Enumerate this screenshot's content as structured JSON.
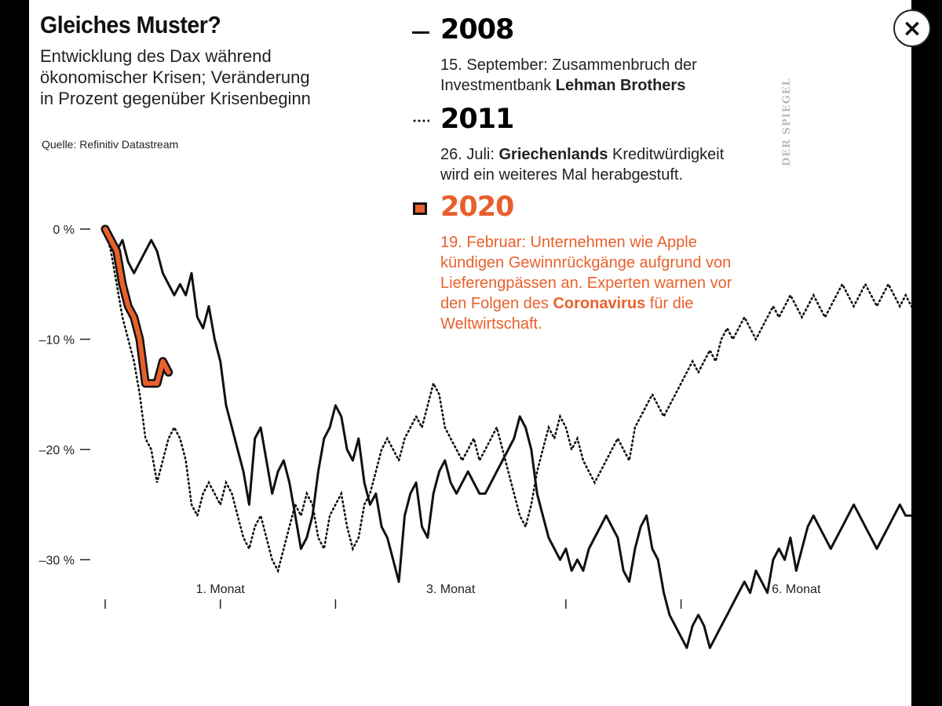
{
  "header": {
    "title": "Gleiches Muster?",
    "subtitle": "Entwicklung des Dax während ökonomischer Krisen; Veränderung in Prozent gegenüber Krisenbeginn",
    "source": "Quelle: Refinitiv Datastream",
    "watermark": "DER SPIEGEL"
  },
  "legend": [
    {
      "year": "2008",
      "desc_parts": [
        {
          "text": "15. September: Zusammenbruch der Investmentbank ",
          "bold": false
        },
        {
          "text": "Lehman Brothers",
          "bold": true
        }
      ]
    },
    {
      "year": "2011",
      "desc_parts": [
        {
          "text": "26. Juli: ",
          "bold": false
        },
        {
          "text": "Griechenlands",
          "bold": true
        },
        {
          "text": " Kreditwürdigkeit wird ein weiteres Mal herabgestuft.",
          "bold": false
        }
      ]
    },
    {
      "year": "2020",
      "desc_parts": [
        {
          "text": "19. Februar: Unternehmen wie Apple kündigen Gewinnrückgänge aufgrund von Lieferengpässen an. Experten warnen vor den Folgen des ",
          "bold": false
        },
        {
          "text": "Coronavirus",
          "bold": true
        },
        {
          "text": " für die Weltwirtschaft.",
          "bold": false
        }
      ]
    }
  ],
  "close_button": {
    "label": "×"
  },
  "colors": {
    "series_2008": "#111111",
    "series_2011": "#111111",
    "series_2020": "#e8602c",
    "outline_2020": "#111111"
  },
  "chart_data": {
    "type": "line",
    "title": "Gleiches Muster?",
    "ylabel": "",
    "xlabel": "",
    "ylim": [
      -40,
      3
    ],
    "xlim": [
      0,
      140
    ],
    "y_ticks": [
      {
        "value": 0,
        "label": "0 %"
      },
      {
        "value": -10,
        "label": "–10 %"
      },
      {
        "value": -20,
        "label": "–20 %"
      },
      {
        "value": -30,
        "label": "–30 %"
      }
    ],
    "x_ticks": [
      0,
      20,
      40,
      80,
      100
    ],
    "x_labels": [
      {
        "value": 20,
        "label": "1. Monat"
      },
      {
        "value": 60,
        "label": "3. Monat"
      },
      {
        "value": 120,
        "label": "6. Monat"
      }
    ],
    "series": [
      {
        "name": "2008",
        "style": "solid",
        "x": [
          0,
          1,
          2,
          3,
          4,
          5,
          6,
          7,
          8,
          9,
          10,
          11,
          12,
          13,
          14,
          15,
          16,
          17,
          18,
          19,
          20,
          21,
          22,
          23,
          24,
          25,
          26,
          27,
          28,
          29,
          30,
          31,
          32,
          33,
          34,
          35,
          36,
          37,
          38,
          39,
          40,
          41,
          42,
          43,
          44,
          45,
          46,
          47,
          48,
          49,
          50,
          51,
          52,
          53,
          54,
          55,
          56,
          57,
          58,
          59,
          60,
          61,
          62,
          63,
          64,
          65,
          66,
          67,
          68,
          69,
          70,
          71,
          72,
          73,
          74,
          75,
          76,
          77,
          78,
          79,
          80,
          81,
          82,
          83,
          84,
          85,
          86,
          87,
          88,
          89,
          90,
          91,
          92,
          93,
          94,
          95,
          96,
          97,
          98,
          99,
          100,
          101,
          102,
          103,
          104,
          105,
          106,
          107,
          108,
          109,
          110,
          111,
          112,
          113,
          114,
          115,
          116,
          117,
          118,
          119,
          120,
          121,
          122,
          123,
          124,
          125,
          126,
          127,
          128,
          129,
          130,
          131,
          132,
          133,
          134,
          135,
          136,
          137,
          138,
          139,
          140
        ],
        "y": [
          0,
          -1,
          -2,
          -1,
          -3,
          -4,
          -3,
          -2,
          -1,
          -2,
          -4,
          -5,
          -6,
          -5,
          -6,
          -4,
          -8,
          -9,
          -7,
          -10,
          -12,
          -16,
          -18,
          -20,
          -22,
          -25,
          -19,
          -18,
          -21,
          -24,
          -22,
          -21,
          -23,
          -26,
          -29,
          -28,
          -26,
          -22,
          -19,
          -18,
          -16,
          -17,
          -20,
          -21,
          -19,
          -23,
          -25,
          -24,
          -27,
          -28,
          -30,
          -32,
          -26,
          -24,
          -23,
          -27,
          -28,
          -24,
          -22,
          -21,
          -23,
          -24,
          -23,
          -22,
          -23,
          -24,
          -24,
          -23,
          -22,
          -21,
          -20,
          -19,
          -17,
          -18,
          -20,
          -24,
          -26,
          -28,
          -29,
          -30,
          -29,
          -31,
          -30,
          -31,
          -29,
          -28,
          -27,
          -26,
          -27,
          -28,
          -31,
          -32,
          -29,
          -27,
          -26,
          -29,
          -30,
          -33,
          -35,
          -36,
          -37,
          -38,
          -36,
          -35,
          -36,
          -38,
          -37,
          -36,
          -35,
          -34,
          -33,
          -32,
          -33,
          -31,
          -32,
          -33,
          -30,
          -29,
          -30,
          -28,
          -31,
          -29,
          -27,
          -26,
          -27,
          -28,
          -29,
          -28,
          -27,
          -26,
          -25,
          -26,
          -27,
          -28,
          -29,
          -28,
          -27,
          -26,
          -25,
          -26,
          -26
        ]
      },
      {
        "name": "2011",
        "style": "dotted",
        "x": [
          0,
          1,
          2,
          3,
          4,
          5,
          6,
          7,
          8,
          9,
          10,
          11,
          12,
          13,
          14,
          15,
          16,
          17,
          18,
          19,
          20,
          21,
          22,
          23,
          24,
          25,
          26,
          27,
          28,
          29,
          30,
          31,
          32,
          33,
          34,
          35,
          36,
          37,
          38,
          39,
          40,
          41,
          42,
          43,
          44,
          45,
          46,
          47,
          48,
          49,
          50,
          51,
          52,
          53,
          54,
          55,
          56,
          57,
          58,
          59,
          60,
          61,
          62,
          63,
          64,
          65,
          66,
          67,
          68,
          69,
          70,
          71,
          72,
          73,
          74,
          75,
          76,
          77,
          78,
          79,
          80,
          81,
          82,
          83,
          84,
          85,
          86,
          87,
          88,
          89,
          90,
          91,
          92,
          93,
          94,
          95,
          96,
          97,
          98,
          99,
          100,
          101,
          102,
          103,
          104,
          105,
          106,
          107,
          108,
          109,
          110,
          111,
          112,
          113,
          114,
          115,
          116,
          117,
          118,
          119,
          120,
          121,
          122,
          123,
          124,
          125,
          126,
          127,
          128,
          129,
          130,
          131,
          132,
          133,
          134,
          135,
          136,
          137,
          138,
          139,
          140
        ],
        "y": [
          0,
          -2,
          -5,
          -8,
          -10,
          -12,
          -15,
          -19,
          -20,
          -23,
          -21,
          -19,
          -18,
          -19,
          -21,
          -25,
          -26,
          -24,
          -23,
          -24,
          -25,
          -23,
          -24,
          -26,
          -28,
          -29,
          -27,
          -26,
          -28,
          -30,
          -31,
          -29,
          -27,
          -25,
          -26,
          -24,
          -25,
          -28,
          -29,
          -26,
          -25,
          -24,
          -27,
          -29,
          -28,
          -25,
          -24,
          -22,
          -20,
          -19,
          -20,
          -21,
          -19,
          -18,
          -17,
          -18,
          -16,
          -14,
          -15,
          -18,
          -19,
          -20,
          -21,
          -20,
          -19,
          -21,
          -20,
          -19,
          -18,
          -20,
          -22,
          -24,
          -26,
          -27,
          -25,
          -22,
          -20,
          -18,
          -19,
          -17,
          -18,
          -20,
          -19,
          -21,
          -22,
          -23,
          -22,
          -21,
          -20,
          -19,
          -20,
          -21,
          -18,
          -17,
          -16,
          -15,
          -16,
          -17,
          -16,
          -15,
          -14,
          -13,
          -12,
          -13,
          -12,
          -11,
          -12,
          -10,
          -9,
          -10,
          -9,
          -8,
          -9,
          -10,
          -9,
          -8,
          -7,
          -8,
          -7,
          -6,
          -7,
          -8,
          -7,
          -6,
          -7,
          -8,
          -7,
          -6,
          -5,
          -6,
          -7,
          -6,
          -5,
          -6,
          -7,
          -6,
          -5,
          -6,
          -7,
          -6,
          -7
        ]
      },
      {
        "name": "2020",
        "style": "thick-orange",
        "x": [
          0,
          1,
          2,
          3,
          4,
          5,
          6,
          7,
          8,
          9,
          10,
          11
        ],
        "y": [
          0,
          -1,
          -2,
          -5,
          -7,
          -8,
          -10,
          -14,
          -14,
          -14,
          -12,
          -13
        ]
      }
    ]
  }
}
